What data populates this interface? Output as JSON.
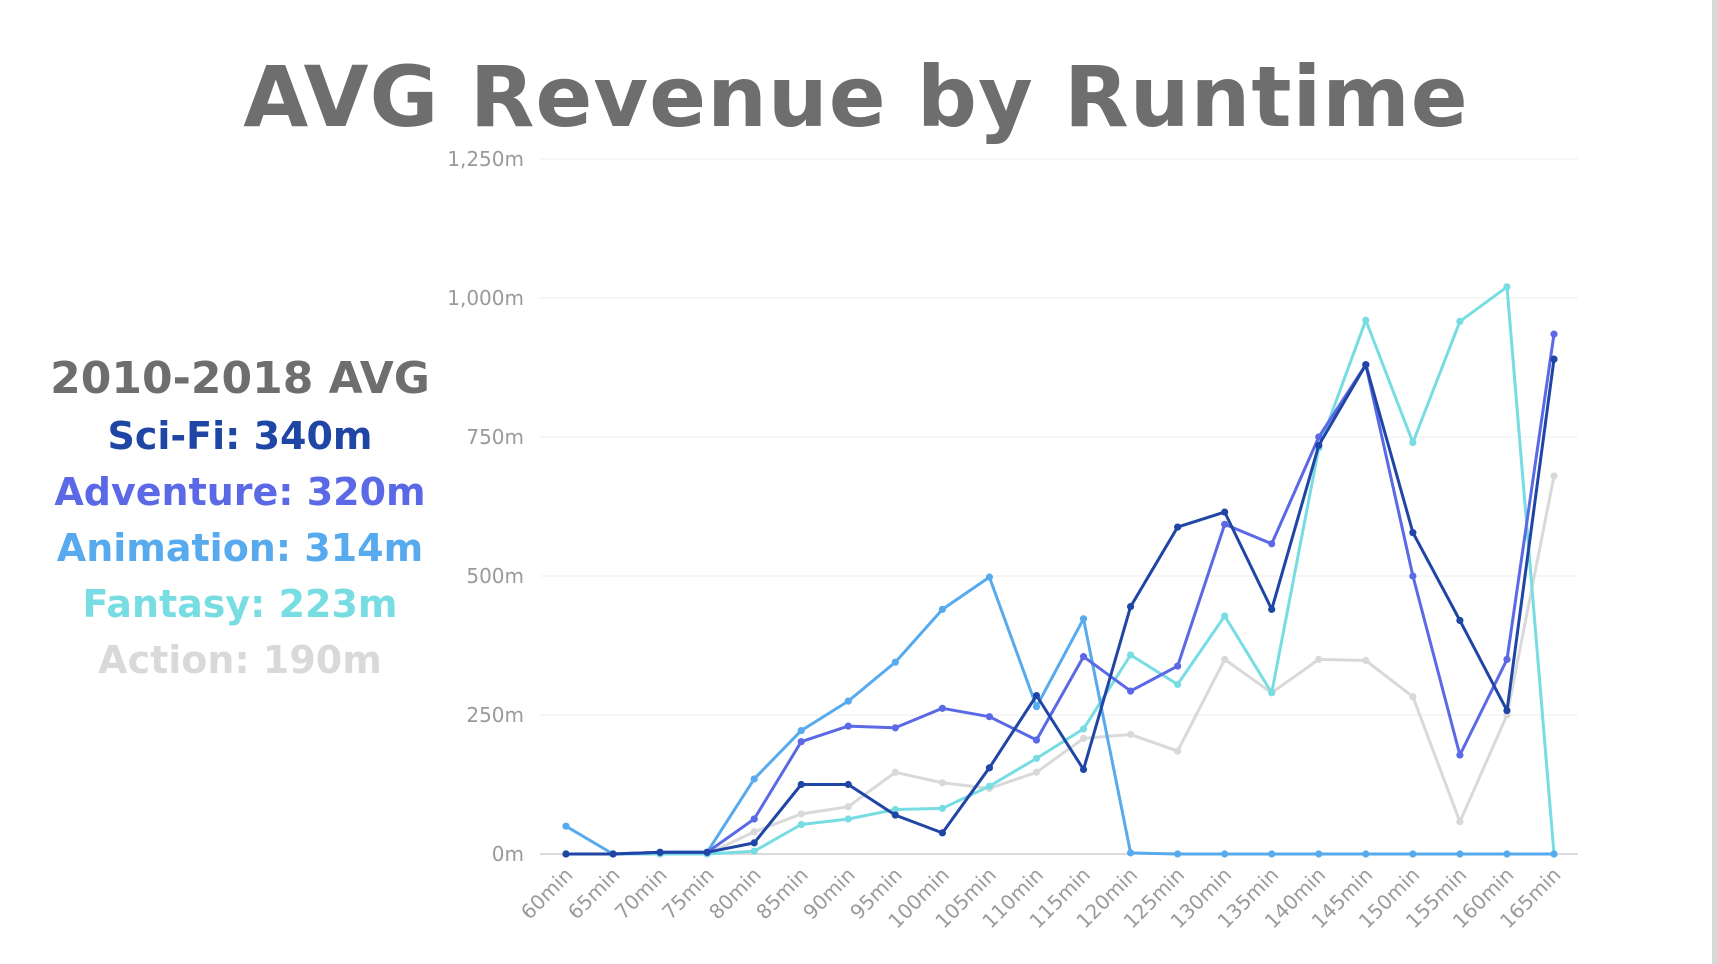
{
  "title": "AVG Revenue by Runtime",
  "summary": {
    "heading": "2010-2018 AVG",
    "rows": [
      {
        "text": "Sci-Fi: 340m",
        "color": "#1f45a5"
      },
      {
        "text": "Adventure: 320m",
        "color": "#5b69e6"
      },
      {
        "text": "Animation: 314m",
        "color": "#57aaee"
      },
      {
        "text": "Fantasy: 223m",
        "color": "#77dde2"
      },
      {
        "text": "Action: 190m",
        "color": "#d9d9d9"
      }
    ]
  },
  "chart_data": {
    "type": "line",
    "categories": [
      "60min",
      "65min",
      "70min",
      "75min",
      "80min",
      "85min",
      "90min",
      "95min",
      "100min",
      "105min",
      "110min",
      "115min",
      "120min",
      "125min",
      "130min",
      "135min",
      "140min",
      "145min",
      "150min",
      "155min",
      "160min",
      "165min"
    ],
    "y_tick_labels": [
      "0m",
      "250m",
      "500m",
      "750m",
      "1,000m",
      "1,250m"
    ],
    "ylim": [
      0,
      1250
    ],
    "grid": true,
    "legend": "none",
    "series": [
      {
        "color": "#d9d9d9",
        "values": [
          0,
          0,
          0,
          0,
          40,
          72,
          85,
          147,
          128,
          118,
          147,
          208,
          215,
          185,
          350,
          290,
          350,
          348,
          283,
          58,
          250,
          680
        ]
      },
      {
        "color": "#77dde2",
        "values": [
          0,
          0,
          0,
          0,
          5,
          53,
          63,
          80,
          82,
          122,
          172,
          225,
          358,
          305,
          428,
          290,
          730,
          960,
          740,
          958,
          1020,
          0
        ]
      },
      {
        "color": "#57aaee",
        "values": [
          50,
          0,
          3,
          3,
          135,
          222,
          275,
          345,
          440,
          498,
          265,
          423,
          2,
          0,
          0,
          0,
          0,
          0,
          0,
          0,
          0,
          0
        ]
      },
      {
        "color": "#5b69e6",
        "values": [
          0,
          0,
          3,
          3,
          63,
          202,
          230,
          227,
          262,
          247,
          205,
          355,
          293,
          338,
          593,
          558,
          750,
          880,
          500,
          178,
          350,
          935
        ]
      },
      {
        "color": "#1f45a5",
        "values": [
          0,
          0,
          3,
          3,
          20,
          125,
          125,
          70,
          38,
          155,
          285,
          152,
          445,
          588,
          615,
          440,
          735,
          880,
          578,
          420,
          258,
          890
        ]
      }
    ]
  }
}
